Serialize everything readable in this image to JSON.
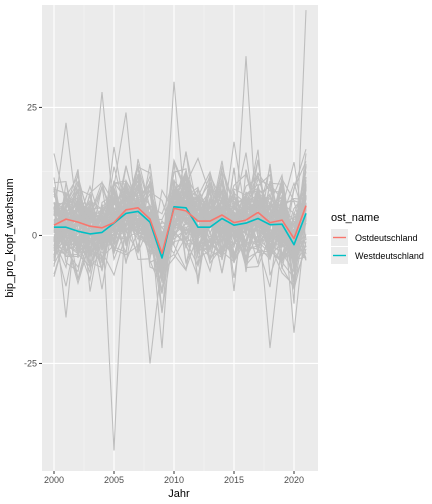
{
  "chart_data": {
    "type": "line",
    "title": "",
    "xlabel": "Jahr",
    "ylabel": "bip_pro_kopf_wachstum",
    "xlim": [
      1999,
      2022
    ],
    "ylim": [
      -46,
      45
    ],
    "x_ticks": [
      2000,
      2005,
      2010,
      2015,
      2020
    ],
    "y_ticks": [
      -25,
      0,
      25
    ],
    "grid": true,
    "legend": {
      "title": "ost_name",
      "position": "right",
      "entries": [
        "Ostdeutschland",
        "Westdeutschland"
      ]
    },
    "x": [
      2000,
      2001,
      2002,
      2003,
      2004,
      2005,
      2006,
      2007,
      2008,
      2009,
      2010,
      2011,
      2012,
      2013,
      2014,
      2015,
      2016,
      2017,
      2018,
      2019,
      2020,
      2021
    ],
    "series": [
      {
        "name": "Ostdeutschland",
        "color": "#F8766D",
        "values": [
          2.0,
          3.2,
          2.6,
          1.8,
          1.5,
          2.5,
          5.0,
          5.4,
          3.2,
          -3.5,
          5.3,
          4.8,
          2.8,
          2.8,
          4.0,
          2.5,
          3.0,
          4.5,
          2.5,
          3.0,
          -0.6,
          5.8
        ]
      },
      {
        "name": "Westdeutschland",
        "color": "#00BFC4",
        "values": [
          1.6,
          1.6,
          0.8,
          0.3,
          0.6,
          2.4,
          4.3,
          4.7,
          2.6,
          -4.4,
          5.6,
          5.4,
          1.6,
          1.6,
          3.3,
          2.0,
          2.4,
          3.3,
          2.1,
          2.2,
          -1.8,
          4.3
        ]
      }
    ],
    "background_series": {
      "color": "#BEBEBE",
      "count": 90,
      "extreme_points": [
        {
          "x": 2000,
          "y": 16
        },
        {
          "x": 2001,
          "y": -16
        },
        {
          "x": 2001,
          "y": 22
        },
        {
          "x": 2004,
          "y": 28
        },
        {
          "x": 2005,
          "y": -42
        },
        {
          "x": 2006,
          "y": 24
        },
        {
          "x": 2008,
          "y": -25
        },
        {
          "x": 2009,
          "y": -22
        },
        {
          "x": 2010,
          "y": 30
        },
        {
          "x": 2016,
          "y": 35
        },
        {
          "x": 2018,
          "y": -22
        },
        {
          "x": 2020,
          "y": -19
        },
        {
          "x": 2021,
          "y": 44
        }
      ]
    }
  }
}
